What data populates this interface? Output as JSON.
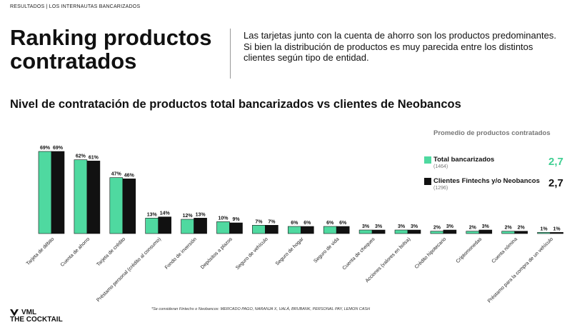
{
  "header": {
    "kicker": "RESULTADOS | LOS INTERNAUTAS BANCARIZADOS",
    "title": "Ranking productos contratados",
    "intro": "Las tarjetas junto con la cuenta de ahorro son los productos predominantes. Si bien la distribución de productos es muy parecida entre los distintos clientes según tipo de entidad."
  },
  "legend": {
    "heading": "Promedio de productos contratados",
    "items": [
      {
        "label": "Total bancarizados",
        "n": "(1464)",
        "value": "2,7",
        "color": "#4fd9a0",
        "value_color": "#3fcf92"
      },
      {
        "label": "Clientes Fintechs y/o Neobancos",
        "n": "(1296)",
        "value": "2,7",
        "color": "#111111",
        "value_color": "#111111"
      }
    ]
  },
  "chart_data": {
    "type": "bar",
    "title": "Nivel de contratación de productos total bancarizados vs clientes de Neobancos",
    "categories": [
      "Tarjeta de débito",
      "Cuenta de ahorro",
      "Tarjeta de crédito",
      "Préstamo personal (crédito al consumo)",
      "Fondo de inversión",
      "Depósitos a plazos",
      "Seguro de vehículo",
      "Seguro de hogar",
      "Seguro de vida",
      "Cuenta de cheques",
      "Acciones (valores en bolsa)",
      "Crédito hipotecario",
      "Criptomonedas",
      "Cuenta nómina",
      "Préstamo para la compra de un vehículo"
    ],
    "series": [
      {
        "name": "Total bancarizados",
        "color": "#4fd9a0",
        "values": [
          69,
          62,
          47,
          13,
          12,
          10,
          7,
          6,
          6,
          3,
          3,
          2,
          2,
          2,
          1
        ],
        "labels": [
          "69%",
          "62%",
          "47%",
          "13%",
          "12%",
          "10%",
          "7%",
          "6%",
          "6%",
          "3%",
          "3%",
          "2%",
          "2%",
          "2%",
          "1%"
        ]
      },
      {
        "name": "Clientes Fintechs y/o Neobancos",
        "color": "#111111",
        "values": [
          69,
          61,
          46,
          14,
          13,
          9,
          7,
          6,
          6,
          3,
          3,
          3,
          3,
          2,
          1
        ],
        "labels": [
          "69%",
          "61%",
          "46%",
          "14%",
          "13%",
          "9%",
          "7%",
          "6%",
          "6%",
          "3%",
          "3%",
          "3%",
          "3%",
          "2%",
          "1%"
        ]
      }
    ],
    "ylim": [
      0,
      69
    ],
    "grid": false
  },
  "footnote": "*Se consideran Fintechs o Neobancos: MERCADO PAGO, NARANJA X, UALÁ, BRUBANK, PERSONAL PAY, LEMON CASH",
  "logo": {
    "line1": "VML",
    "line2": "THE COCKTAIL"
  }
}
